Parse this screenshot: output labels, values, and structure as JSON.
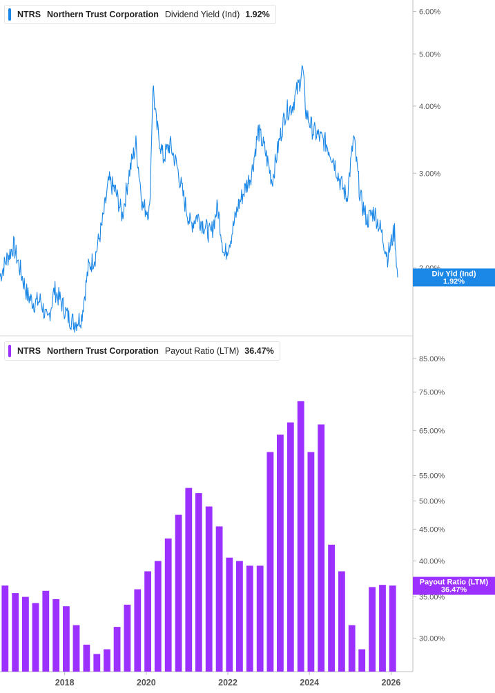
{
  "colors": {
    "yield": "#1b87e6",
    "payout": "#9b30ff",
    "axis": "#bbbbbb"
  },
  "top_legend": {
    "ticker": "NTRS",
    "company": "Northern Trust Corporation",
    "metric": "Dividend Yield (Ind)",
    "value": "1.92%"
  },
  "bottom_legend": {
    "ticker": "NTRS",
    "company": "Northern Trust Corporation",
    "metric": "Payout Ratio (LTM)",
    "value": "36.47%"
  },
  "chart_data": [
    {
      "type": "line",
      "name": "Dividend Yield (Ind)",
      "scale": "log",
      "ylim": [
        1.5,
        6.3
      ],
      "xlim": [
        "2016-06-01",
        "2026-07-15"
      ],
      "yticks": [
        {
          "value": 2,
          "label": "2.00%"
        },
        {
          "value": 3,
          "label": "3.00%"
        },
        {
          "value": 4,
          "label": "4.00%"
        },
        {
          "value": 5,
          "label": "5.00%"
        },
        {
          "value": 6,
          "label": "6.00%"
        }
      ],
      "current_tag": {
        "label": "Div Yld (Ind)",
        "value": "1.92%"
      },
      "x": [
        "2016-06",
        "2016-08",
        "2016-10",
        "2016-12",
        "2017-02",
        "2017-04",
        "2017-06",
        "2017-08",
        "2017-10",
        "2017-12",
        "2018-02",
        "2018-04",
        "2018-06",
        "2018-08",
        "2018-10",
        "2018-12",
        "2019-02",
        "2019-04",
        "2019-06",
        "2019-08",
        "2019-10",
        "2019-12",
        "2020-02",
        "2020-03",
        "2020-04",
        "2020-06",
        "2020-08",
        "2020-10",
        "2020-12",
        "2021-02",
        "2021-04",
        "2021-06",
        "2021-08",
        "2021-10",
        "2021-12",
        "2022-02",
        "2022-04",
        "2022-06",
        "2022-08",
        "2022-10",
        "2022-12",
        "2023-02",
        "2023-04",
        "2023-06",
        "2023-08",
        "2023-10",
        "2023-11",
        "2023-12",
        "2024-02",
        "2024-04",
        "2024-06",
        "2024-08",
        "2024-10",
        "2024-12",
        "2025-02",
        "2025-04",
        "2025-06",
        "2025-08",
        "2025-10",
        "2025-12",
        "2026-02",
        "2026-03"
      ],
      "values": [
        1.93,
        2.08,
        2.2,
        1.98,
        1.78,
        1.72,
        1.74,
        1.58,
        1.82,
        1.73,
        1.62,
        1.58,
        1.62,
        2.0,
        2.1,
        2.4,
        2.9,
        2.78,
        2.5,
        3.0,
        3.4,
        2.6,
        2.55,
        4.4,
        3.7,
        3.2,
        3.4,
        3.1,
        2.7,
        2.4,
        2.5,
        2.4,
        2.3,
        2.6,
        2.1,
        2.3,
        2.6,
        2.8,
        3.0,
        3.6,
        3.3,
        2.9,
        3.4,
        3.9,
        4.0,
        4.4,
        4.7,
        3.9,
        3.6,
        3.5,
        3.4,
        3.2,
        2.9,
        2.7,
        3.5,
        2.7,
        2.45,
        2.55,
        2.35,
        2.1,
        2.35,
        1.92
      ]
    },
    {
      "type": "bar",
      "name": "Payout Ratio (LTM)",
      "scale": "log",
      "ylim": [
        26.5,
        92
      ],
      "yticks": [
        {
          "value": 30,
          "label": "30.00%"
        },
        {
          "value": 35,
          "label": "35.00%"
        },
        {
          "value": 40,
          "label": "40.00%"
        },
        {
          "value": 45,
          "label": "45.00%"
        },
        {
          "value": 50,
          "label": "50.00%"
        },
        {
          "value": 55,
          "label": "55.00%"
        },
        {
          "value": 65,
          "label": "65.00%"
        },
        {
          "value": 75,
          "label": "75.00%"
        },
        {
          "value": 85,
          "label": "85.00%"
        }
      ],
      "xticks": [
        "2018",
        "2020",
        "2022",
        "2024",
        "2026"
      ],
      "current_tag": {
        "label": "Payout Ratio (LTM)",
        "value": "36.47%"
      },
      "x": [
        "2016-06",
        "2016-09",
        "2016-12",
        "2017-03",
        "2017-06",
        "2017-09",
        "2017-12",
        "2018-03",
        "2018-06",
        "2018-09",
        "2018-12",
        "2019-03",
        "2019-06",
        "2019-09",
        "2019-12",
        "2020-03",
        "2020-06",
        "2020-09",
        "2020-12",
        "2021-03",
        "2021-06",
        "2021-09",
        "2021-12",
        "2022-03",
        "2022-06",
        "2022-09",
        "2022-12",
        "2023-03",
        "2023-06",
        "2023-09",
        "2023-12",
        "2024-03",
        "2024-06",
        "2024-09",
        "2024-12",
        "2025-03",
        "2025-06",
        "2025-09",
        "2025-12"
      ],
      "values": [
        36.5,
        35.5,
        35.0,
        34.2,
        35.8,
        34.7,
        33.8,
        31.5,
        29.3,
        28.3,
        28.8,
        31.3,
        34.0,
        36.0,
        38.5,
        40.0,
        43.5,
        47.5,
        52.5,
        51.5,
        49.0,
        45.5,
        40.5,
        40.0,
        39.3,
        39.3,
        60.0,
        64.0,
        67.0,
        72.5,
        60.0,
        66.5,
        42.5,
        38.5,
        31.5,
        28.8,
        36.3,
        36.6,
        36.5
      ]
    }
  ]
}
